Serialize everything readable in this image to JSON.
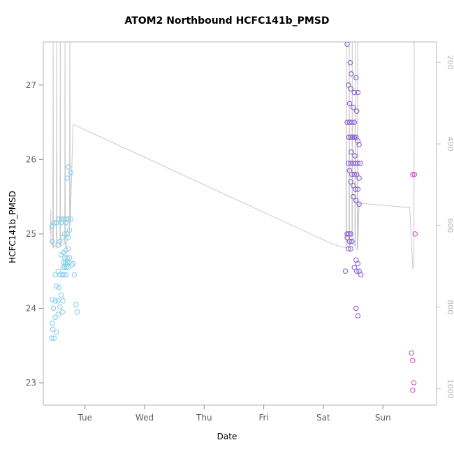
{
  "figure": {
    "title": "ATOM2 Northbound HCFC141b_PMSD",
    "xlabel": "Date",
    "ylabel": "HCFC141b_PMSD"
  },
  "chart_data": {
    "type": "scatter",
    "title": "ATOM2 Northbound HCFC141b_PMSD",
    "xlabel": "Date",
    "ylabel": "HCFC141b_PMSD",
    "legend": "none",
    "grid": false,
    "xlim": [
      0.3,
      6.9
    ],
    "x_ticks": [
      {
        "pos": 1,
        "label": "Tue"
      },
      {
        "pos": 2,
        "label": "Wed"
      },
      {
        "pos": 3,
        "label": "Thu"
      },
      {
        "pos": 4,
        "label": "Fri"
      },
      {
        "pos": 5,
        "label": "Sat"
      },
      {
        "pos": 6,
        "label": "Sun"
      }
    ],
    "ylim_left": [
      22.7,
      27.58
    ],
    "y_ticks_left": [
      23,
      24,
      25,
      26,
      27
    ],
    "ylim_right": [
      150,
      1040
    ],
    "right_axis_reversed_increasing_down": true,
    "y_ticks_right": [
      200,
      400,
      600,
      800,
      1000
    ],
    "colors": {
      "series1": "#87CEEB",
      "series2": "#8A5FD1",
      "series3": "#CE53CE",
      "line": "#c9c9c9",
      "box": "#b4b4b4",
      "tick": "#8a8a8a",
      "tick_label": "#5f5f5f",
      "tick_right": "#c2c2c2",
      "tick_label_right": "#b5b5b5"
    },
    "series": [
      {
        "name": "monday-leg-skyblue",
        "color_key": "series1",
        "points": [
          [
            0.44,
            23.6
          ],
          [
            0.48,
            23.6
          ],
          [
            0.46,
            23.72
          ],
          [
            0.52,
            23.68
          ],
          [
            0.45,
            23.8
          ],
          [
            0.5,
            23.88
          ],
          [
            0.55,
            23.92
          ],
          [
            0.47,
            24.0
          ],
          [
            0.58,
            24.02
          ],
          [
            0.62,
            23.95
          ],
          [
            0.45,
            24.12
          ],
          [
            0.5,
            24.1
          ],
          [
            0.55,
            24.1
          ],
          [
            0.6,
            24.18
          ],
          [
            0.52,
            24.3
          ],
          [
            0.56,
            24.28
          ],
          [
            0.63,
            24.1
          ],
          [
            0.5,
            24.45
          ],
          [
            0.55,
            24.5
          ],
          [
            0.58,
            24.45
          ],
          [
            0.62,
            24.45
          ],
          [
            0.65,
            24.45
          ],
          [
            0.68,
            24.45
          ],
          [
            0.82,
            24.45
          ],
          [
            0.63,
            24.55
          ],
          [
            0.66,
            24.55
          ],
          [
            0.69,
            24.55
          ],
          [
            0.72,
            24.55
          ],
          [
            0.78,
            24.58
          ],
          [
            0.8,
            24.6
          ],
          [
            0.64,
            24.62
          ],
          [
            0.67,
            24.62
          ],
          [
            0.7,
            24.62
          ],
          [
            0.73,
            24.62
          ],
          [
            0.66,
            24.68
          ],
          [
            0.7,
            24.68
          ],
          [
            0.74,
            24.68
          ],
          [
            0.6,
            24.72
          ],
          [
            0.64,
            24.75
          ],
          [
            0.68,
            24.78
          ],
          [
            0.72,
            24.8
          ],
          [
            0.55,
            24.85
          ],
          [
            0.45,
            24.9
          ],
          [
            0.58,
            24.9
          ],
          [
            0.62,
            24.95
          ],
          [
            0.72,
            24.95
          ],
          [
            0.66,
            25.0
          ],
          [
            0.7,
            25.0
          ],
          [
            0.74,
            25.05
          ],
          [
            0.44,
            25.1
          ],
          [
            0.48,
            25.15
          ],
          [
            0.52,
            25.15
          ],
          [
            0.6,
            25.15
          ],
          [
            0.68,
            25.15
          ],
          [
            0.56,
            25.2
          ],
          [
            0.6,
            25.2
          ],
          [
            0.64,
            25.2
          ],
          [
            0.68,
            25.2
          ],
          [
            0.72,
            25.2
          ],
          [
            0.76,
            25.2
          ],
          [
            0.85,
            24.05
          ],
          [
            0.87,
            23.95
          ],
          [
            0.7,
            25.75
          ],
          [
            0.76,
            25.82
          ],
          [
            0.72,
            25.9
          ]
        ]
      },
      {
        "name": "saturday-leg-purple",
        "color_key": "series2",
        "points": [
          [
            5.4,
            27.55
          ],
          [
            5.45,
            27.3
          ],
          [
            5.47,
            27.15
          ],
          [
            5.55,
            27.1
          ],
          [
            5.42,
            27.0
          ],
          [
            5.46,
            26.95
          ],
          [
            5.52,
            26.9
          ],
          [
            5.58,
            26.9
          ],
          [
            5.44,
            26.75
          ],
          [
            5.5,
            26.7
          ],
          [
            5.56,
            26.65
          ],
          [
            5.4,
            26.5
          ],
          [
            5.44,
            26.5
          ],
          [
            5.48,
            26.5
          ],
          [
            5.52,
            26.5
          ],
          [
            5.43,
            26.3
          ],
          [
            5.46,
            26.3
          ],
          [
            5.49,
            26.3
          ],
          [
            5.52,
            26.3
          ],
          [
            5.55,
            26.3
          ],
          [
            5.58,
            26.25
          ],
          [
            5.6,
            26.2
          ],
          [
            5.47,
            26.1
          ],
          [
            5.53,
            26.05
          ],
          [
            5.42,
            25.95
          ],
          [
            5.46,
            25.95
          ],
          [
            5.5,
            25.95
          ],
          [
            5.54,
            25.95
          ],
          [
            5.58,
            25.95
          ],
          [
            5.62,
            25.95
          ],
          [
            5.44,
            25.85
          ],
          [
            5.48,
            25.8
          ],
          [
            5.52,
            25.8
          ],
          [
            5.56,
            25.8
          ],
          [
            5.6,
            25.75
          ],
          [
            5.46,
            25.7
          ],
          [
            5.5,
            25.65
          ],
          [
            5.54,
            25.6
          ],
          [
            5.58,
            25.6
          ],
          [
            5.5,
            25.5
          ],
          [
            5.55,
            25.45
          ],
          [
            5.6,
            25.4
          ],
          [
            5.4,
            25.0
          ],
          [
            5.43,
            25.0
          ],
          [
            5.46,
            25.0
          ],
          [
            5.4,
            24.95
          ],
          [
            5.44,
            24.9
          ],
          [
            5.48,
            24.9
          ],
          [
            5.42,
            24.8
          ],
          [
            5.46,
            24.8
          ],
          [
            5.55,
            24.65
          ],
          [
            5.58,
            24.6
          ],
          [
            5.52,
            24.55
          ],
          [
            5.56,
            24.5
          ],
          [
            5.6,
            24.5
          ],
          [
            5.37,
            24.5
          ],
          [
            5.63,
            24.45
          ],
          [
            5.55,
            24.0
          ],
          [
            5.58,
            23.9
          ]
        ]
      },
      {
        "name": "sunday-leg-magenta",
        "color_key": "series3",
        "points": [
          [
            6.5,
            25.8
          ],
          [
            6.53,
            25.8
          ],
          [
            6.54,
            25.0
          ],
          [
            6.48,
            23.4
          ],
          [
            6.5,
            23.3
          ],
          [
            6.52,
            23.0
          ],
          [
            6.5,
            22.9
          ]
        ]
      }
    ],
    "altitude_line": {
      "axis": "right",
      "points": [
        [
          0.42,
          620
        ],
        [
          0.425,
          560
        ],
        [
          0.43,
          640
        ],
        [
          0.46,
          650
        ],
        [
          0.465,
          140
        ],
        [
          0.47,
          655
        ],
        [
          0.52,
          645
        ],
        [
          0.525,
          125
        ],
        [
          0.53,
          655
        ],
        [
          0.58,
          650
        ],
        [
          0.585,
          115
        ],
        [
          0.59,
          650
        ],
        [
          0.66,
          645
        ],
        [
          0.665,
          125
        ],
        [
          0.67,
          655
        ],
        [
          0.74,
          615
        ],
        [
          0.745,
          135
        ],
        [
          0.75,
          600
        ],
        [
          0.8,
          352
        ],
        [
          5.15,
          645
        ],
        [
          5.38,
          655
        ],
        [
          5.385,
          140
        ],
        [
          5.39,
          650
        ],
        [
          5.43,
          655
        ],
        [
          5.435,
          125
        ],
        [
          5.44,
          650
        ],
        [
          5.48,
          640
        ],
        [
          5.485,
          115
        ],
        [
          5.49,
          645
        ],
        [
          5.53,
          650
        ],
        [
          5.535,
          125
        ],
        [
          5.54,
          655
        ],
        [
          5.57,
          660
        ],
        [
          5.575,
          140
        ],
        [
          5.58,
          655
        ],
        [
          5.6,
          545
        ],
        [
          6.45,
          556
        ],
        [
          6.5,
          705
        ],
        [
          6.52,
          700
        ],
        [
          6.525,
          140
        ]
      ]
    }
  }
}
